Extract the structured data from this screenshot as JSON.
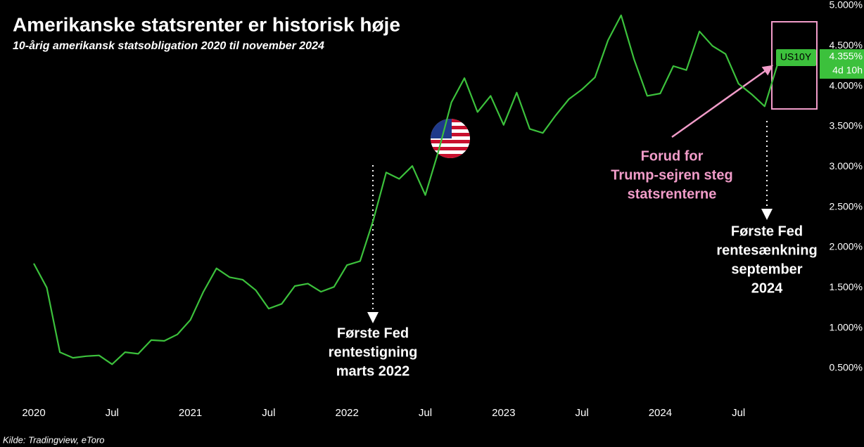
{
  "chart_data": {
    "type": "line",
    "title": "Amerikanske statsrenter er historisk høje",
    "subtitle": "10-årig amerikansk statsobligation 2020 til november 2024",
    "source": "Kilde: Tradingview, eToro",
    "x": [
      "2020-01",
      "2020-02",
      "2020-03",
      "2020-04",
      "2020-05",
      "2020-06",
      "2020-07",
      "2020-08",
      "2020-09",
      "2020-10",
      "2020-11",
      "2020-12",
      "2021-01",
      "2021-02",
      "2021-03",
      "2021-04",
      "2021-05",
      "2021-06",
      "2021-07",
      "2021-08",
      "2021-09",
      "2021-10",
      "2021-11",
      "2021-12",
      "2022-01",
      "2022-02",
      "2022-03",
      "2022-04",
      "2022-05",
      "2022-06",
      "2022-07",
      "2022-08",
      "2022-09",
      "2022-10",
      "2022-11",
      "2022-12",
      "2023-01",
      "2023-02",
      "2023-03",
      "2023-04",
      "2023-05",
      "2023-06",
      "2023-07",
      "2023-08",
      "2023-09",
      "2023-10",
      "2023-11",
      "2023-12",
      "2024-01",
      "2024-02",
      "2024-03",
      "2024-04",
      "2024-05",
      "2024-06",
      "2024-07",
      "2024-08",
      "2024-09",
      "2024-10",
      "2024-11"
    ],
    "series": [
      {
        "name": "US10Y",
        "color": "#3cc13c",
        "values": [
          1.8,
          1.5,
          0.7,
          0.63,
          0.65,
          0.66,
          0.55,
          0.7,
          0.68,
          0.85,
          0.84,
          0.92,
          1.1,
          1.45,
          1.74,
          1.63,
          1.6,
          1.47,
          1.24,
          1.3,
          1.52,
          1.55,
          1.45,
          1.51,
          1.78,
          1.83,
          2.33,
          2.93,
          2.85,
          3.01,
          2.65,
          3.19,
          3.8,
          4.1,
          3.68,
          3.88,
          3.52,
          3.92,
          3.47,
          3.42,
          3.64,
          3.84,
          3.96,
          4.11,
          4.57,
          4.88,
          4.33,
          3.88,
          3.91,
          4.25,
          4.2,
          4.68,
          4.5,
          4.4,
          4.03,
          3.9,
          3.75,
          4.28,
          4.355
        ]
      }
    ],
    "last_value_label": "4.355%",
    "countdown": "4d 10h",
    "ylim": [
      0.5,
      5.0
    ],
    "yticks": [
      {
        "value": 0.5,
        "label": "0.500%"
      },
      {
        "value": 1.0,
        "label": "1.000%"
      },
      {
        "value": 1.5,
        "label": "1.500%"
      },
      {
        "value": 2.0,
        "label": "2.000%"
      },
      {
        "value": 2.5,
        "label": "2.500%"
      },
      {
        "value": 3.0,
        "label": "3.000%"
      },
      {
        "value": 3.5,
        "label": "3.500%"
      },
      {
        "value": 4.0,
        "label": "4.000%"
      },
      {
        "value": 4.5,
        "label": "4.500%"
      },
      {
        "value": 5.0,
        "label": "5.000%"
      }
    ],
    "xticks": [
      {
        "value": "2020-01",
        "label": "2020"
      },
      {
        "value": "2020-07",
        "label": "Jul"
      },
      {
        "value": "2021-01",
        "label": "2021"
      },
      {
        "value": "2021-07",
        "label": "Jul"
      },
      {
        "value": "2022-01",
        "label": "2022"
      },
      {
        "value": "2022-07",
        "label": "Jul"
      },
      {
        "value": "2023-01",
        "label": "2023"
      },
      {
        "value": "2023-07",
        "label": "Jul"
      },
      {
        "value": "2024-01",
        "label": "2024"
      },
      {
        "value": "2024-07",
        "label": "Jul"
      }
    ],
    "annotations": [
      {
        "lines": [
          "Første Fed",
          "rentestigning",
          "marts 2022"
        ]
      },
      {
        "lines": [
          "Forud for",
          "Trump-sejren steg",
          "statsrenterne"
        ]
      },
      {
        "lines": [
          "Første Fed",
          "rentesænkning",
          "september",
          "2024"
        ]
      }
    ]
  }
}
